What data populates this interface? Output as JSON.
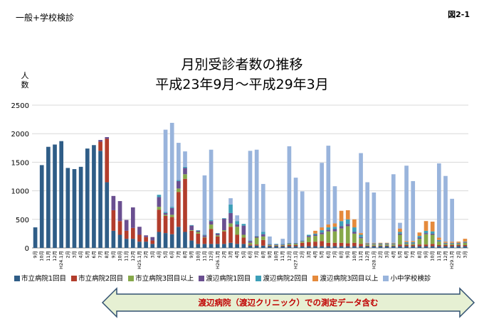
{
  "header": {
    "corner_label": "一般+学校検診",
    "figure_id": "図2-1"
  },
  "colors": {
    "city1": "#2f5d87",
    "city2": "#b23d2c",
    "city3": "#86a84a",
    "wata1": "#6a4f90",
    "wata2": "#3d9fb8",
    "wata3": "#e58a3c",
    "school": "#99b4dc",
    "banner_fill": "#e6f0d3",
    "banner_stroke": "#305070",
    "banner_text": "#c00000",
    "grid": "#d8d8d8"
  },
  "banner": {
    "text": "渡辺病院（渡辺クリニック）での測定データ含む"
  },
  "chart_data": {
    "type": "bar",
    "stacked": true,
    "title": "月別受診者数の推移",
    "subtitle": "平成23年9月～平成29年3月",
    "ylabel": "人数",
    "ylabel_chars": [
      "人",
      "数"
    ],
    "ylim": [
      0,
      2500
    ],
    "yticks": [
      0,
      500,
      1000,
      1500,
      2000,
      2500
    ],
    "ytick_labels": [
      "0",
      "500",
      "1000",
      "1500",
      "2000",
      "2500"
    ],
    "grid": true,
    "legend_position": "bottom",
    "categories": [
      "9月",
      "10月",
      "11月",
      "12月",
      "H24.1月",
      "2月",
      "3月",
      "4月",
      "5月",
      "6月",
      "7月",
      "8月",
      "9月",
      "10月",
      "11月",
      "12月",
      "H25.1月",
      "2月",
      "3月",
      "4月",
      "5月",
      "6月",
      "7月",
      "8月",
      "9月",
      "10月",
      "11月",
      "12月",
      "H26.1月",
      "2月",
      "3月",
      "4月",
      "5月",
      "6月",
      "7月",
      "8月",
      "9月",
      "10月",
      "11月",
      "12月",
      "H27.1月",
      "2月",
      "3月",
      "4月",
      "5月",
      "6月",
      "7月",
      "8月",
      "9月",
      "10月",
      "11月",
      "12月",
      "H28.1月",
      "2月",
      "3月",
      "4月",
      "5月",
      "6月",
      "7月",
      "8月",
      "9月",
      "10月",
      "11月",
      "12月",
      "H29.1月",
      "2月",
      "3月"
    ],
    "series": [
      {
        "name": "市立病院1回目",
        "color_key": "city1",
        "values": [
          360,
          1450,
          1770,
          1810,
          1870,
          1400,
          1380,
          1420,
          1740,
          1800,
          1700,
          1150,
          300,
          230,
          160,
          160,
          110,
          110,
          70,
          280,
          260,
          240,
          370,
          280,
          130,
          70,
          70,
          70,
          70,
          70,
          90,
          70,
          70,
          40,
          40,
          40,
          30,
          30,
          30,
          30,
          30,
          30,
          30,
          30,
          30,
          30,
          30,
          30,
          30,
          30,
          30,
          30,
          30,
          30,
          30,
          30,
          30,
          30,
          30,
          30,
          30,
          30,
          30,
          30,
          30,
          30,
          30
        ]
      },
      {
        "name": "市立病院2回目",
        "color_key": "city2",
        "values": [
          0,
          0,
          0,
          0,
          0,
          0,
          0,
          0,
          0,
          0,
          160,
          760,
          360,
          240,
          140,
          190,
          120,
          80,
          60,
          390,
          300,
          300,
          610,
          930,
          170,
          180,
          110,
          260,
          130,
          220,
          280,
          160,
          110,
          20,
          20,
          100,
          10,
          10,
          10,
          20,
          20,
          60,
          70,
          80,
          90,
          60,
          60,
          60,
          50,
          60,
          40,
          10,
          10,
          10,
          10,
          10,
          30,
          20,
          20,
          30,
          30,
          40,
          20,
          20,
          20,
          20,
          20
        ]
      },
      {
        "name": "市立病院3回目以上",
        "color_key": "city3",
        "values": [
          0,
          0,
          0,
          0,
          0,
          0,
          0,
          0,
          0,
          0,
          0,
          0,
          0,
          0,
          0,
          0,
          0,
          0,
          0,
          50,
          20,
          40,
          60,
          80,
          10,
          30,
          10,
          80,
          20,
          20,
          60,
          140,
          50,
          30,
          120,
          60,
          10,
          10,
          10,
          20,
          20,
          20,
          90,
          100,
          120,
          200,
          200,
          250,
          300,
          160,
          100,
          20,
          20,
          20,
          20,
          20,
          170,
          20,
          20,
          100,
          180,
          160,
          60,
          20,
          20,
          20,
          40
        ]
      },
      {
        "name": "渡辺病院1回目",
        "color_key": "wata1",
        "values": [
          0,
          0,
          0,
          0,
          0,
          0,
          0,
          0,
          0,
          0,
          30,
          30,
          250,
          350,
          190,
          360,
          140,
          30,
          60,
          170,
          30,
          120,
          130,
          110,
          80,
          20,
          30,
          60,
          30,
          200,
          180,
          40,
          160,
          30,
          20,
          40,
          10,
          10,
          10,
          10,
          10,
          10,
          20,
          20,
          30,
          30,
          40,
          40,
          40,
          30,
          20,
          10,
          10,
          10,
          10,
          10,
          20,
          10,
          10,
          20,
          20,
          20,
          10,
          10,
          10,
          10,
          10
        ]
      },
      {
        "name": "渡辺病院2回目",
        "color_key": "wata2",
        "values": [
          0,
          0,
          0,
          0,
          0,
          0,
          0,
          0,
          0,
          0,
          0,
          0,
          0,
          0,
          0,
          0,
          0,
          0,
          0,
          40,
          20,
          20,
          20,
          20,
          10,
          10,
          10,
          20,
          10,
          10,
          150,
          60,
          30,
          10,
          10,
          40,
          10,
          10,
          10,
          10,
          10,
          10,
          20,
          20,
          40,
          40,
          40,
          90,
          80,
          80,
          40,
          10,
          10,
          10,
          10,
          10,
          30,
          20,
          20,
          30,
          40,
          40,
          20,
          10,
          10,
          10,
          10
        ]
      },
      {
        "name": "渡辺病院3回目以上",
        "color_key": "wata3",
        "values": [
          0,
          0,
          0,
          0,
          0,
          0,
          0,
          0,
          0,
          0,
          0,
          0,
          0,
          0,
          0,
          0,
          0,
          0,
          0,
          0,
          0,
          0,
          0,
          0,
          0,
          0,
          0,
          0,
          0,
          0,
          0,
          0,
          0,
          0,
          0,
          0,
          0,
          0,
          0,
          0,
          0,
          0,
          0,
          50,
          50,
          50,
          60,
          180,
          160,
          140,
          30,
          10,
          10,
          10,
          10,
          10,
          60,
          20,
          20,
          60,
          170,
          170,
          40,
          20,
          20,
          20,
          50
        ]
      },
      {
        "name": "小中学校検診",
        "color_key": "school",
        "values": [
          0,
          0,
          0,
          0,
          0,
          0,
          0,
          0,
          0,
          0,
          0,
          0,
          0,
          0,
          0,
          0,
          0,
          0,
          0,
          0,
          1440,
          1470,
          650,
          270,
          0,
          0,
          1040,
          1230,
          0,
          0,
          110,
          100,
          0,
          1570,
          1510,
          840,
          130,
          0,
          90,
          1690,
          1140,
          860,
          0,
          0,
          1130,
          1380,
          650,
          0,
          0,
          0,
          1400,
          1060,
          880,
          0,
          0,
          1200,
          100,
          1320,
          1050,
          0,
          0,
          0,
          1300,
          1150,
          750,
          0,
          0
        ]
      }
    ]
  },
  "legend_items": [
    "市立病院1回目",
    "市立病院2回目",
    "市立病院3回目以上",
    "渡辺病院1回目",
    "渡辺病院2回目",
    "渡辺病院3回目以上",
    "小中学校検診"
  ]
}
